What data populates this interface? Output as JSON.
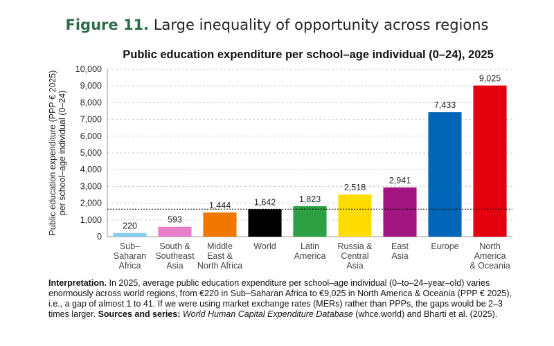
{
  "figure_label": "Figure 11.",
  "figure_title": "Large inequality of opportunity across regions",
  "chart_data": {
    "type": "bar",
    "title": "Public education expenditure per school–age individual (0–24), 2025",
    "ylabel": "Public education expenditure (PPP € 2025)\nper school–age individual (0–24)",
    "categories": [
      "Sub–\nSaharan\nAfrica",
      "South &\nSoutheast\nAsia",
      "Middle\nEast &\nNorth Africa",
      "World",
      "Latin\nAmerica",
      "Russia &\nCentral\nAsia",
      "East\nAsia",
      "Europe",
      "North\nAmerica\n& Oceania"
    ],
    "values": [
      220,
      593,
      1444,
      1642,
      1823,
      2518,
      2941,
      7433,
      9025
    ],
    "value_labels": [
      "220",
      "593",
      "1,444",
      "1,642",
      "1,823",
      "2,518",
      "2,941",
      "7,433",
      "9,025"
    ],
    "colors": [
      "#87ceeb",
      "#e87fc8",
      "#f07800",
      "#000000",
      "#2ca043",
      "#ffdc00",
      "#a0157f",
      "#0066b8",
      "#e3000f"
    ],
    "reference_line_index": 3,
    "ylim": [
      0,
      10000
    ],
    "yticks": [
      0,
      {
        "value": 1000,
        "label": "1,000"
      },
      {
        "value": 2000,
        "label": "2,000"
      },
      {
        "value": 3000,
        "label": "3,000"
      },
      {
        "value": 4000,
        "label": "4,000"
      },
      {
        "value": 5000,
        "label": "5,000"
      },
      {
        "value": 6000,
        "label": "6,000"
      },
      {
        "value": 7000,
        "label": "7,000"
      },
      {
        "value": 8000,
        "label": "8,000"
      },
      {
        "value": 9000,
        "label": "9,000"
      },
      {
        "value": 10000,
        "label": "10,000"
      }
    ],
    "grid": true
  },
  "note": [
    {
      "text": "Interpretation.",
      "bold": true
    },
    {
      "text": " In 2025, average public education expenditure per school–age individual (0–to–24–year–old) varies enormously across world regions, from €220 in Sub–Saharan Africa to €9,025 in North America & Oceania (PPP € 2025), i.e., a gap of almost 1 to 41. If we were using market exchange rates (MERs) rather than PPPs, the gaps would be 2–3 times larger. "
    },
    {
      "text": "Sources and series:",
      "bold": true
    },
    {
      "text": " "
    },
    {
      "text": "World Human Capital Expenditure Database",
      "italic": true
    },
    {
      "text": " (whce.world) and Bharti et al. (2025)."
    }
  ]
}
